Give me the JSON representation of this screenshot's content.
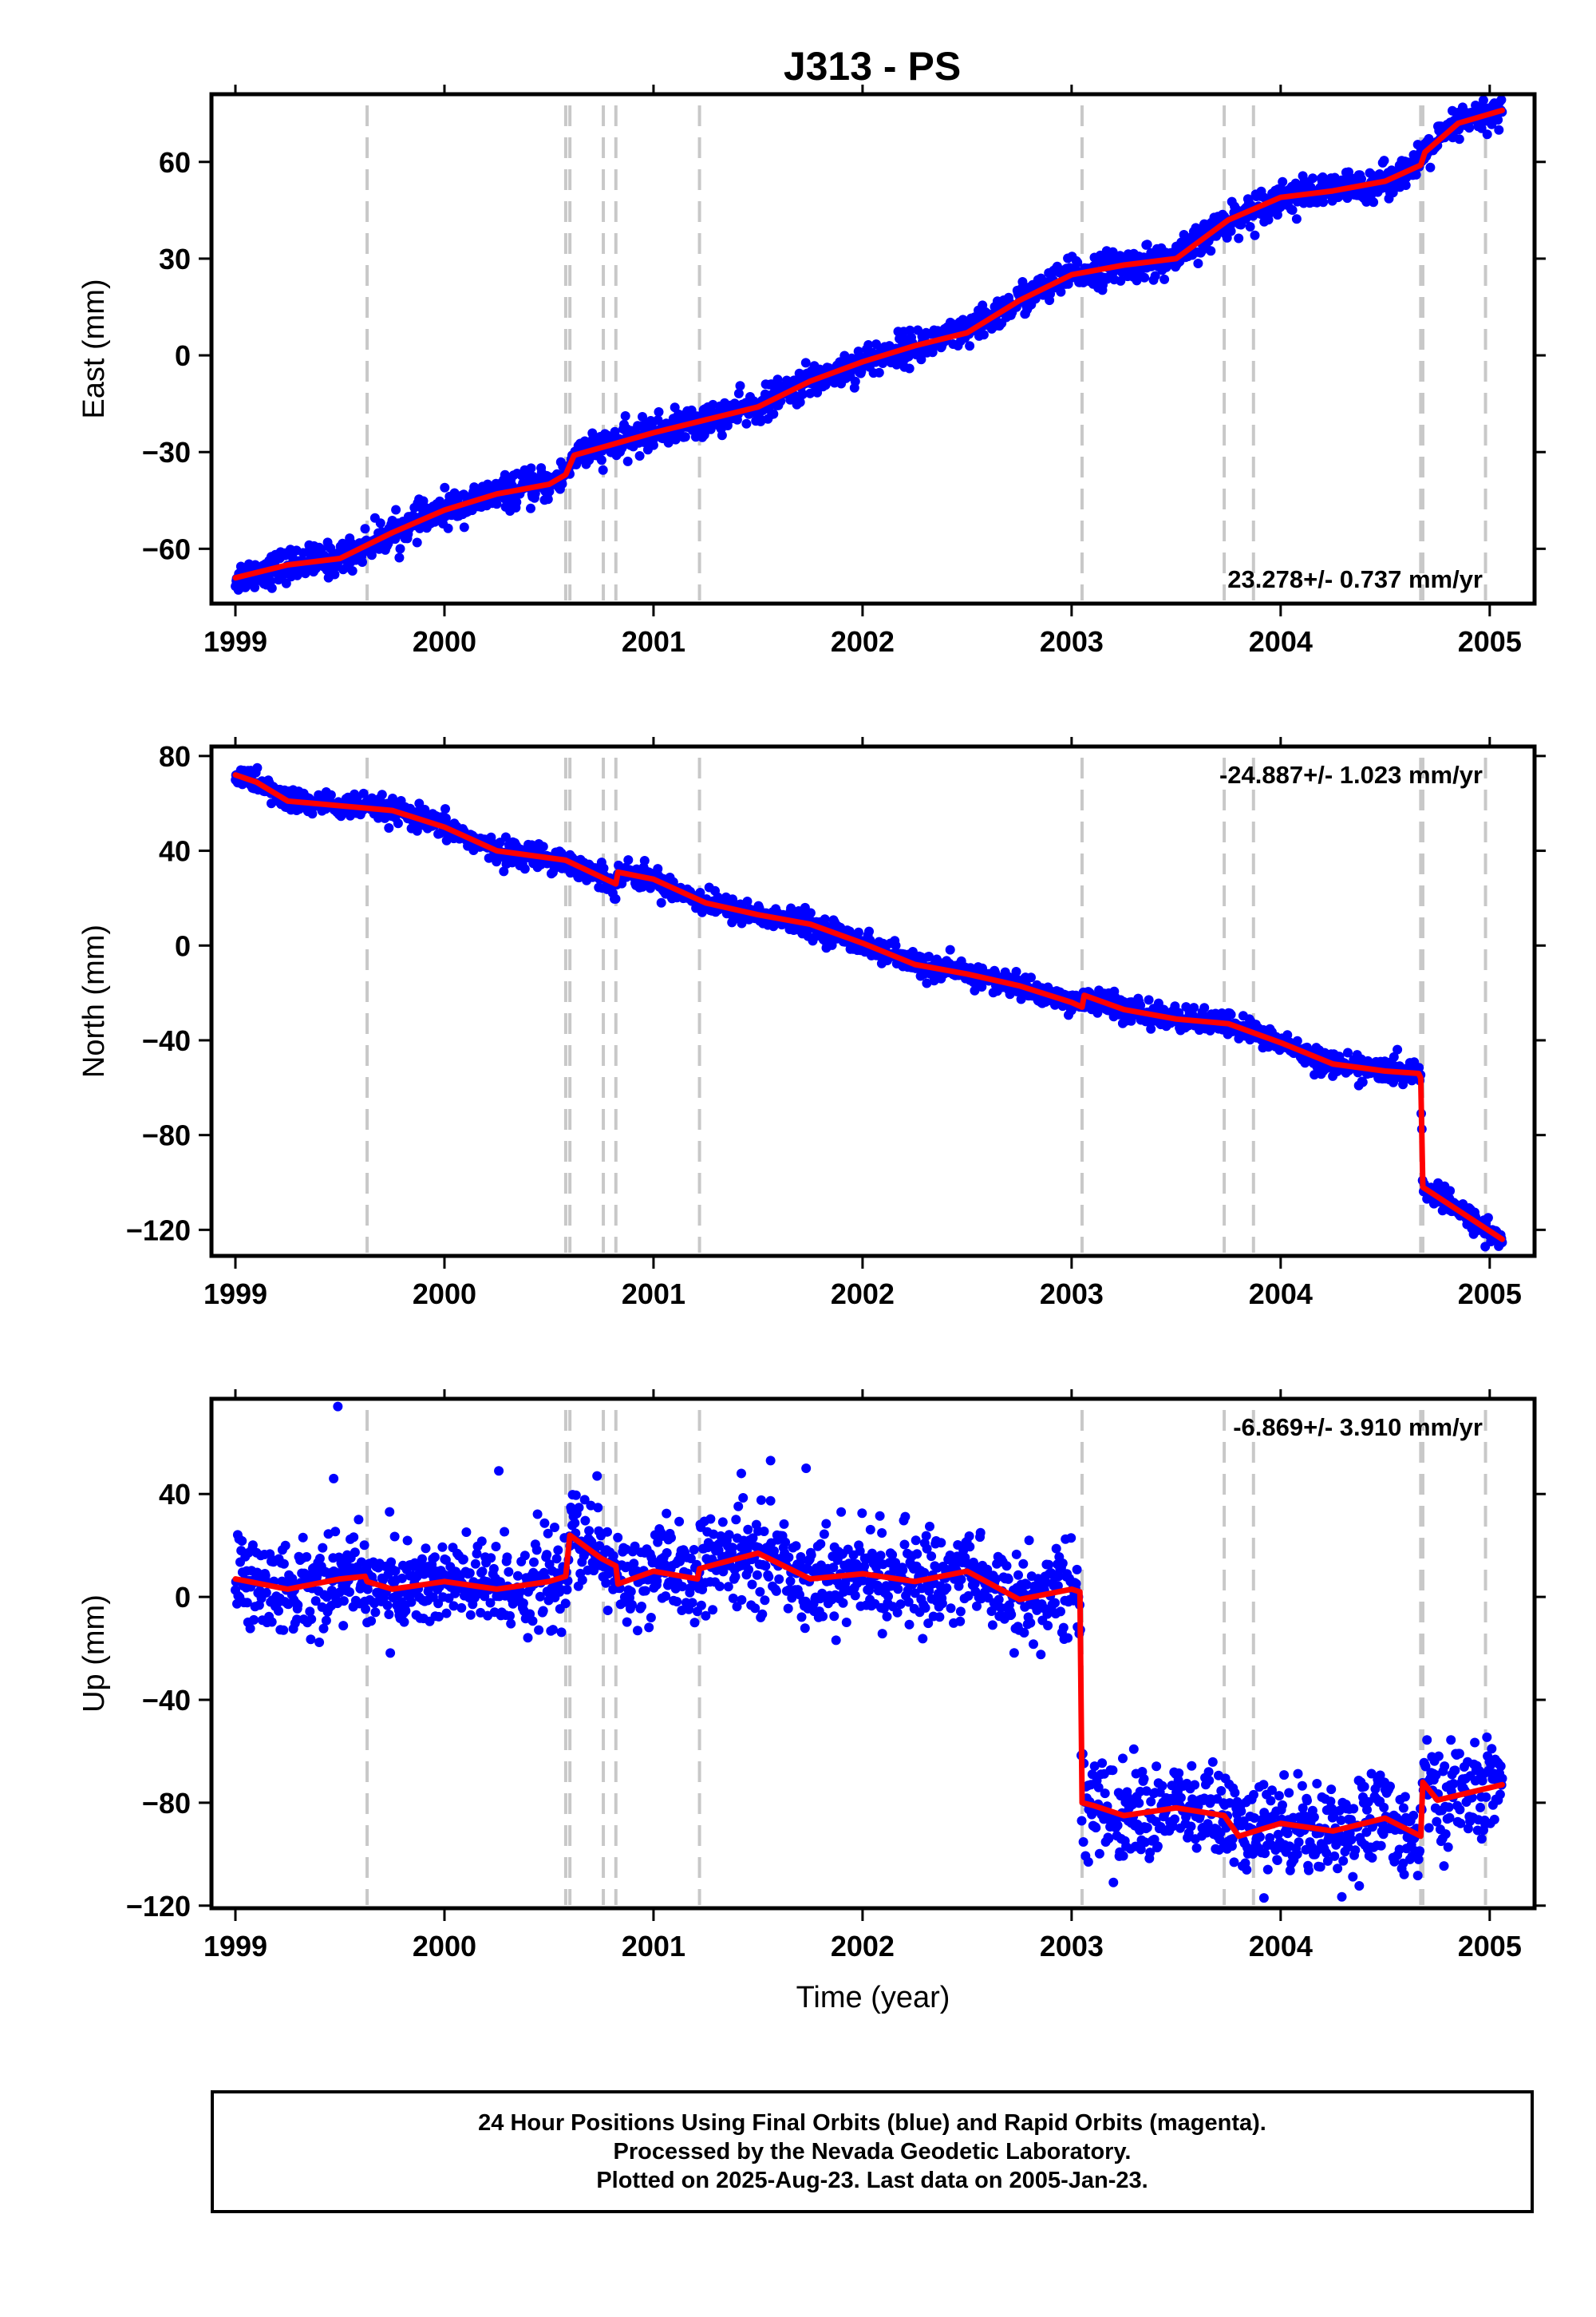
{
  "title": "J313 - PS",
  "colors": {
    "observations": "#0000ff",
    "model": "#ff0000",
    "event_lines": "#c8c8c8",
    "frame": "#000000"
  },
  "chart_data": [
    {
      "type": "scatter",
      "component": "east",
      "ylabel": "East (mm)",
      "xlabel": "",
      "xlim": [
        1999.0,
        2005.1
      ],
      "ylim": [
        -77,
        81
      ],
      "x_ticks": [
        1999,
        2000,
        2001,
        2002,
        2003,
        2004,
        2005
      ],
      "y_ticks": [
        -60,
        -30,
        0,
        30,
        60
      ],
      "rate_label": "23.278+/- 0.737 mm/yr",
      "rate_position": "bottom-right",
      "event_lines": [
        1999.63,
        2000.58,
        2000.6,
        2000.76,
        2000.82,
        2001.22,
        2003.05,
        2003.73,
        2003.87,
        2004.67,
        2004.68,
        2004.98
      ],
      "series": [
        {
          "role": "observations",
          "noise": 2.5,
          "x": [
            1999.0,
            1999.25,
            1999.5,
            1999.75,
            2000.0,
            2000.25,
            2000.5,
            2000.58,
            2000.62,
            2001.0,
            2001.25,
            2001.5,
            2001.75,
            2002.0,
            2002.25,
            2002.5,
            2002.75,
            2003.0,
            2003.25,
            2003.5,
            2003.75,
            2004.0,
            2004.25,
            2004.5,
            2004.67,
            2004.69,
            2004.85,
            2005.06
          ],
          "y": [
            -69,
            -65,
            -63,
            -55,
            -48,
            -43,
            -40,
            -37,
            -31,
            -24,
            -20,
            -16,
            -8,
            -2,
            3,
            7,
            17,
            25,
            28,
            30,
            42,
            49,
            51,
            54,
            59,
            63,
            72,
            76
          ]
        },
        {
          "role": "model",
          "x": [
            1999.0,
            1999.25,
            1999.5,
            1999.75,
            2000.0,
            2000.25,
            2000.5,
            2000.58,
            2000.62,
            2001.0,
            2001.25,
            2001.5,
            2001.75,
            2002.0,
            2002.25,
            2002.5,
            2002.75,
            2003.0,
            2003.25,
            2003.5,
            2003.75,
            2004.0,
            2004.25,
            2004.5,
            2004.67,
            2004.69,
            2004.85,
            2005.06
          ],
          "y": [
            -69,
            -65,
            -63,
            -55,
            -48,
            -43,
            -40,
            -37,
            -31,
            -24,
            -20,
            -16,
            -8,
            -2,
            3,
            7,
            17,
            25,
            28,
            30,
            42,
            49,
            51,
            54,
            59,
            63,
            72,
            76
          ]
        }
      ]
    },
    {
      "type": "scatter",
      "component": "north",
      "ylabel": "North (mm)",
      "xlabel": "",
      "xlim": [
        1999.0,
        2005.1
      ],
      "ylim": [
        -131,
        84
      ],
      "x_ticks": [
        1999,
        2000,
        2001,
        2002,
        2003,
        2004,
        2005
      ],
      "y_ticks": [
        -120,
        -80,
        -40,
        0,
        40,
        80
      ],
      "rate_label": "-24.887+/- 1.023 mm/yr",
      "rate_position": "top-right",
      "event_lines": [
        1999.63,
        2000.58,
        2000.6,
        2000.76,
        2000.82,
        2001.22,
        2003.05,
        2003.73,
        2003.87,
        2004.67,
        2004.68,
        2004.98
      ],
      "series": [
        {
          "role": "observations",
          "noise": 2.5,
          "x": [
            1999.0,
            1999.1,
            1999.25,
            1999.5,
            1999.75,
            2000.0,
            2000.25,
            2000.5,
            2000.58,
            2000.82,
            2000.83,
            2001.0,
            2001.25,
            2001.5,
            2001.75,
            2002.0,
            2002.25,
            2002.5,
            2002.75,
            2003.0,
            2003.05,
            2003.06,
            2003.25,
            2003.5,
            2003.75,
            2004.0,
            2004.25,
            2004.5,
            2004.66,
            2004.67,
            2004.68,
            2005.06
          ],
          "y": [
            72,
            69,
            61,
            59,
            57,
            50,
            40,
            37,
            36,
            26,
            31,
            28,
            18,
            13,
            9,
            1,
            -8,
            -12,
            -17,
            -24,
            -26,
            -21,
            -27,
            -31,
            -33,
            -41,
            -50,
            -53,
            -54,
            -56,
            -102,
            -124
          ]
        },
        {
          "role": "model",
          "x": [
            1999.0,
            1999.1,
            1999.25,
            1999.5,
            1999.75,
            2000.0,
            2000.25,
            2000.5,
            2000.58,
            2000.82,
            2000.83,
            2001.0,
            2001.25,
            2001.5,
            2001.75,
            2002.0,
            2002.25,
            2002.5,
            2002.75,
            2003.0,
            2003.05,
            2003.06,
            2003.25,
            2003.5,
            2003.75,
            2004.0,
            2004.25,
            2004.5,
            2004.66,
            2004.67,
            2004.68,
            2005.06
          ],
          "y": [
            72,
            69,
            61,
            59,
            57,
            50,
            40,
            37,
            36,
            26,
            31,
            28,
            18,
            13,
            9,
            1,
            -8,
            -12,
            -17,
            -24,
            -26,
            -21,
            -27,
            -31,
            -33,
            -41,
            -50,
            -53,
            -54,
            -56,
            -102,
            -124
          ]
        }
      ]
    },
    {
      "type": "scatter",
      "component": "up",
      "ylabel": "Up (mm)",
      "xlabel": "Time (year)",
      "xlim": [
        1999.0,
        2005.1
      ],
      "ylim": [
        -121,
        77
      ],
      "x_ticks": [
        1999,
        2000,
        2001,
        2002,
        2003,
        2004,
        2005
      ],
      "y_ticks": [
        -120,
        -80,
        -40,
        0,
        40
      ],
      "rate_label": "-6.869+/- 3.910 mm/yr",
      "rate_position": "top-right",
      "event_lines": [
        1999.63,
        2000.58,
        2000.6,
        2000.76,
        2000.82,
        2001.22,
        2003.05,
        2003.73,
        2003.87,
        2004.67,
        2004.68,
        2004.98
      ],
      "series": [
        {
          "role": "observations",
          "noise": 9,
          "x": [
            1999.0,
            1999.25,
            1999.5,
            1999.62,
            1999.63,
            1999.75,
            2000.0,
            2000.25,
            2000.5,
            2000.58,
            2000.6,
            2000.75,
            2000.82,
            2000.83,
            2001.0,
            2001.21,
            2001.22,
            2001.5,
            2001.75,
            2002.0,
            2002.25,
            2002.5,
            2002.75,
            2003.0,
            2003.04,
            2003.05,
            2003.1,
            2003.25,
            2003.5,
            2003.73,
            2003.8,
            2004.0,
            2004.25,
            2004.5,
            2004.67,
            2004.68,
            2004.75,
            2005.06
          ],
          "y": [
            7,
            3,
            7,
            8,
            6,
            3,
            6,
            3,
            6,
            8,
            24,
            15,
            12,
            5,
            10,
            7,
            11,
            17,
            7,
            9,
            6,
            10,
            -1,
            3,
            2,
            -80,
            -81,
            -85,
            -82,
            -85,
            -93,
            -88,
            -91,
            -86,
            -93,
            -72,
            -79,
            -73
          ]
        },
        {
          "role": "model",
          "x": [
            1999.0,
            1999.25,
            1999.5,
            1999.62,
            1999.63,
            1999.75,
            2000.0,
            2000.25,
            2000.5,
            2000.58,
            2000.6,
            2000.75,
            2000.82,
            2000.83,
            2001.0,
            2001.21,
            2001.22,
            2001.5,
            2001.75,
            2002.0,
            2002.25,
            2002.5,
            2002.75,
            2003.0,
            2003.04,
            2003.05,
            2003.1,
            2003.25,
            2003.5,
            2003.73,
            2003.8,
            2004.0,
            2004.25,
            2004.5,
            2004.67,
            2004.68,
            2004.75,
            2005.06
          ],
          "y": [
            7,
            3,
            7,
            8,
            6,
            3,
            6,
            3,
            6,
            8,
            24,
            15,
            12,
            5,
            10,
            7,
            11,
            17,
            7,
            9,
            6,
            10,
            -1,
            3,
            2,
            -80,
            -81,
            -85,
            -82,
            -85,
            -93,
            -88,
            -91,
            -86,
            -93,
            -72,
            -79,
            -73
          ]
        }
      ],
      "outliers": [
        {
          "x": 1999.49,
          "y": 74
        },
        {
          "x": 1999.47,
          "y": 46
        },
        {
          "x": 2000.26,
          "y": 49
        },
        {
          "x": 2001.56,
          "y": 53
        },
        {
          "x": 2001.42,
          "y": 48
        },
        {
          "x": 2000.73,
          "y": 47
        },
        {
          "x": 2001.73,
          "y": 50
        },
        {
          "x": 2003.08,
          "y": -103
        },
        {
          "x": 2003.92,
          "y": -117
        },
        {
          "x": 2003.2,
          "y": -111
        }
      ]
    }
  ],
  "caption": {
    "line1": "24 Hour Positions Using Final Orbits (blue) and Rapid Orbits (magenta).",
    "line2": "Processed by the Nevada Geodetic Laboratory.",
    "line3": "Plotted on 2025-Aug-23. Last data on 2005-Jan-23."
  }
}
